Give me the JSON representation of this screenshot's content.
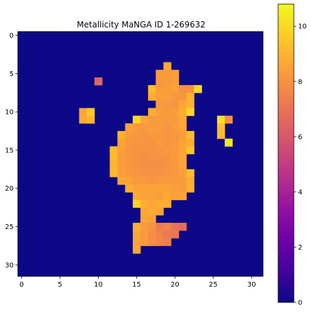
{
  "chart_data": {
    "type": "heatmap",
    "title": "Metallicity MaNGA ID 1-269632",
    "grid_size": [
      32,
      32
    ],
    "xlim": [
      -0.5,
      31.5
    ],
    "ylim": [
      31.5,
      -0.5
    ],
    "x_ticks": [
      0,
      5,
      10,
      15,
      20,
      25,
      30
    ],
    "y_ticks": [
      0,
      5,
      10,
      15,
      20,
      25,
      30
    ],
    "colorbar": {
      "colormap": "plasma",
      "vmin": 0,
      "vmax": 10.8,
      "ticks": [
        0,
        2,
        4,
        6,
        8,
        10
      ]
    },
    "background_value": 0,
    "cells": [
      [
        19,
        4,
        8.7
      ],
      [
        18,
        5,
        8.3
      ],
      [
        19,
        5,
        8.3
      ],
      [
        20,
        5,
        8.4
      ],
      [
        10,
        6,
        6.5
      ],
      [
        18,
        6,
        8.2
      ],
      [
        19,
        6,
        8.3
      ],
      [
        20,
        6,
        8.4
      ],
      [
        17,
        7,
        9.3
      ],
      [
        18,
        7,
        8.3
      ],
      [
        19,
        7,
        8.4
      ],
      [
        20,
        7,
        8.5
      ],
      [
        21,
        7,
        7.9
      ],
      [
        22,
        7,
        8.0
      ],
      [
        23,
        7,
        10.0
      ],
      [
        17,
        8,
        8.8
      ],
      [
        18,
        8,
        8.4
      ],
      [
        19,
        8,
        8.4
      ],
      [
        20,
        8,
        8.2
      ],
      [
        21,
        8,
        8.1
      ],
      [
        22,
        8,
        9.0
      ],
      [
        18,
        9,
        8.3
      ],
      [
        19,
        9,
        8.2
      ],
      [
        20,
        9,
        8.1
      ],
      [
        21,
        9,
        8.6
      ],
      [
        22,
        9,
        9.0
      ],
      [
        8,
        10,
        8.6
      ],
      [
        9,
        10,
        9.6
      ],
      [
        17,
        10,
        8.9
      ],
      [
        18,
        10,
        8.4
      ],
      [
        19,
        10,
        8.3
      ],
      [
        20,
        10,
        8.4
      ],
      [
        21,
        10,
        8.8
      ],
      [
        22,
        10,
        9.9
      ],
      [
        8,
        11,
        8.7
      ],
      [
        9,
        11,
        9.1
      ],
      [
        15,
        11,
        10.0
      ],
      [
        16,
        11,
        8.6
      ],
      [
        17,
        11,
        8.2
      ],
      [
        18,
        11,
        8.3
      ],
      [
        19,
        11,
        8.3
      ],
      [
        20,
        11,
        8.3
      ],
      [
        21,
        11,
        8.7
      ],
      [
        26,
        11,
        10.2
      ],
      [
        27,
        11,
        8.0
      ],
      [
        14,
        12,
        8.5
      ],
      [
        15,
        12,
        8.3
      ],
      [
        16,
        12,
        8.2
      ],
      [
        17,
        12,
        8.4
      ],
      [
        18,
        12,
        8.3
      ],
      [
        19,
        12,
        8.1
      ],
      [
        20,
        12,
        8.4
      ],
      [
        21,
        12,
        8.6
      ],
      [
        26,
        12,
        9.3
      ],
      [
        13,
        13,
        9.0
      ],
      [
        14,
        13,
        8.3
      ],
      [
        15,
        13,
        8.2
      ],
      [
        16,
        13,
        8.1
      ],
      [
        17,
        13,
        8.2
      ],
      [
        18,
        13,
        8.2
      ],
      [
        19,
        13,
        8.1
      ],
      [
        20,
        13,
        8.2
      ],
      [
        21,
        13,
        8.4
      ],
      [
        22,
        13,
        9.3
      ],
      [
        26,
        13,
        9.2
      ],
      [
        13,
        14,
        8.6
      ],
      [
        14,
        14,
        8.2
      ],
      [
        15,
        14,
        8.1
      ],
      [
        16,
        14,
        8.1
      ],
      [
        17,
        14,
        8.0
      ],
      [
        18,
        14,
        8.3
      ],
      [
        19,
        14,
        8.1
      ],
      [
        20,
        14,
        8.2
      ],
      [
        21,
        14,
        8.5
      ],
      [
        22,
        14,
        8.8
      ],
      [
        27,
        14,
        10.3
      ],
      [
        12,
        15,
        9.2
      ],
      [
        13,
        15,
        8.4
      ],
      [
        14,
        15,
        8.1
      ],
      [
        15,
        15,
        8.0
      ],
      [
        16,
        15,
        8.0
      ],
      [
        17,
        15,
        8.0
      ],
      [
        18,
        15,
        8.1
      ],
      [
        19,
        15,
        8.2
      ],
      [
        20,
        15,
        8.3
      ],
      [
        21,
        15,
        8.6
      ],
      [
        22,
        15,
        9.5
      ],
      [
        12,
        16,
        9.1
      ],
      [
        13,
        16,
        8.3
      ],
      [
        14,
        16,
        8.1
      ],
      [
        15,
        16,
        8.0
      ],
      [
        16,
        16,
        7.9
      ],
      [
        17,
        16,
        8.0
      ],
      [
        18,
        16,
        8.0
      ],
      [
        19,
        16,
        8.0
      ],
      [
        20,
        16,
        8.3
      ],
      [
        21,
        16,
        8.6
      ],
      [
        12,
        17,
        9.0
      ],
      [
        13,
        17,
        8.4
      ],
      [
        14,
        17,
        8.1
      ],
      [
        15,
        17,
        8.0
      ],
      [
        16,
        17,
        7.9
      ],
      [
        17,
        17,
        7.9
      ],
      [
        18,
        17,
        7.9
      ],
      [
        19,
        17,
        8.0
      ],
      [
        20,
        17,
        8.2
      ],
      [
        21,
        17,
        8.5
      ],
      [
        12,
        18,
        9.1
      ],
      [
        13,
        18,
        8.4
      ],
      [
        14,
        18,
        8.2
      ],
      [
        15,
        18,
        8.1
      ],
      [
        16,
        18,
        8.0
      ],
      [
        17,
        18,
        8.0
      ],
      [
        18,
        18,
        8.0
      ],
      [
        19,
        18,
        8.1
      ],
      [
        20,
        18,
        8.2
      ],
      [
        21,
        18,
        8.4
      ],
      [
        22,
        18,
        9.3
      ],
      [
        13,
        19,
        8.7
      ],
      [
        14,
        19,
        8.5
      ],
      [
        15,
        19,
        8.3
      ],
      [
        16,
        19,
        8.2
      ],
      [
        17,
        19,
        8.1
      ],
      [
        18,
        19,
        8.2
      ],
      [
        19,
        19,
        8.3
      ],
      [
        20,
        19,
        8.3
      ],
      [
        21,
        19,
        8.3
      ],
      [
        22,
        19,
        8.8
      ],
      [
        14,
        20,
        8.8
      ],
      [
        15,
        20,
        8.5
      ],
      [
        16,
        20,
        8.6
      ],
      [
        17,
        20,
        8.6
      ],
      [
        18,
        20,
        8.6
      ],
      [
        19,
        20,
        8.5
      ],
      [
        20,
        20,
        8.4
      ],
      [
        21,
        20,
        8.3
      ],
      [
        22,
        20,
        8.9
      ],
      [
        15,
        21,
        8.7
      ],
      [
        16,
        21,
        8.5
      ],
      [
        17,
        21,
        8.5
      ],
      [
        18,
        21,
        8.4
      ],
      [
        19,
        21,
        8.7
      ],
      [
        20,
        21,
        8.5
      ],
      [
        21,
        21,
        8.6
      ],
      [
        15,
        22,
        9.8
      ],
      [
        16,
        22,
        8.9
      ],
      [
        17,
        22,
        8.5
      ],
      [
        18,
        22,
        8.8
      ],
      [
        19,
        22,
        8.8
      ],
      [
        16,
        23,
        8.7
      ],
      [
        17,
        23,
        8.8
      ],
      [
        18,
        23,
        8.6
      ],
      [
        16,
        24,
        8.6
      ],
      [
        17,
        24,
        8.5
      ],
      [
        15,
        25,
        8.9
      ],
      [
        16,
        25,
        8.3
      ],
      [
        17,
        25,
        8.0
      ],
      [
        18,
        25,
        7.3
      ],
      [
        19,
        25,
        7.6
      ],
      [
        20,
        25,
        7.0
      ],
      [
        21,
        25,
        6.7
      ],
      [
        15,
        26,
        8.7
      ],
      [
        16,
        26,
        8.2
      ],
      [
        17,
        26,
        7.8
      ],
      [
        18,
        26,
        7.5
      ],
      [
        19,
        26,
        7.2
      ],
      [
        20,
        26,
        7.1
      ],
      [
        15,
        27,
        8.5
      ],
      [
        16,
        27,
        8.3
      ],
      [
        17,
        27,
        7.9
      ],
      [
        18,
        27,
        7.6
      ],
      [
        19,
        27,
        7.4
      ],
      [
        15,
        28,
        8.7
      ]
    ]
  }
}
